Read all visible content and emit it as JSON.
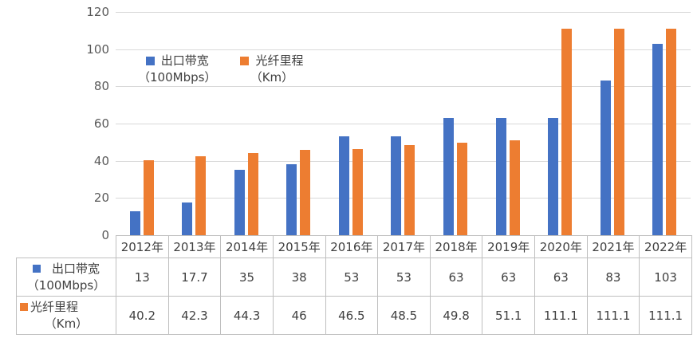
{
  "chart_data": {
    "type": "bar",
    "categories": [
      "2012年",
      "2013年",
      "2014年",
      "2015年",
      "2016年",
      "2017年",
      "2018年",
      "2019年",
      "2020年",
      "2021年",
      "2022年"
    ],
    "series": [
      {
        "key": "bandwidth",
        "name": "出口带宽",
        "unit": "（100Mbps）",
        "color": "#4472C4",
        "values": [
          13,
          17.7,
          35,
          38,
          53,
          53,
          63,
          63,
          63,
          83,
          103
        ]
      },
      {
        "key": "fiber",
        "name": "光纤里程",
        "unit": "（Km）",
        "color": "#ED7D31",
        "values": [
          40.2,
          42.3,
          44.3,
          46,
          46.5,
          48.5,
          49.8,
          51.1,
          111.1,
          111.1,
          111.1
        ]
      }
    ],
    "title": "",
    "xlabel": "",
    "ylabel": "",
    "ylim": [
      0,
      120
    ],
    "yticks": [
      0,
      20,
      40,
      60,
      80,
      100,
      120
    ],
    "grid": true,
    "legend_position": "inside-top-left",
    "data_table_shown": true
  },
  "colors": {
    "series_blue": "#4472C4",
    "series_orange": "#ED7D31",
    "gridline": "#D9D9D9",
    "table_border": "#BFBFBF",
    "axis_text": "#595959",
    "table_text": "#404040"
  }
}
